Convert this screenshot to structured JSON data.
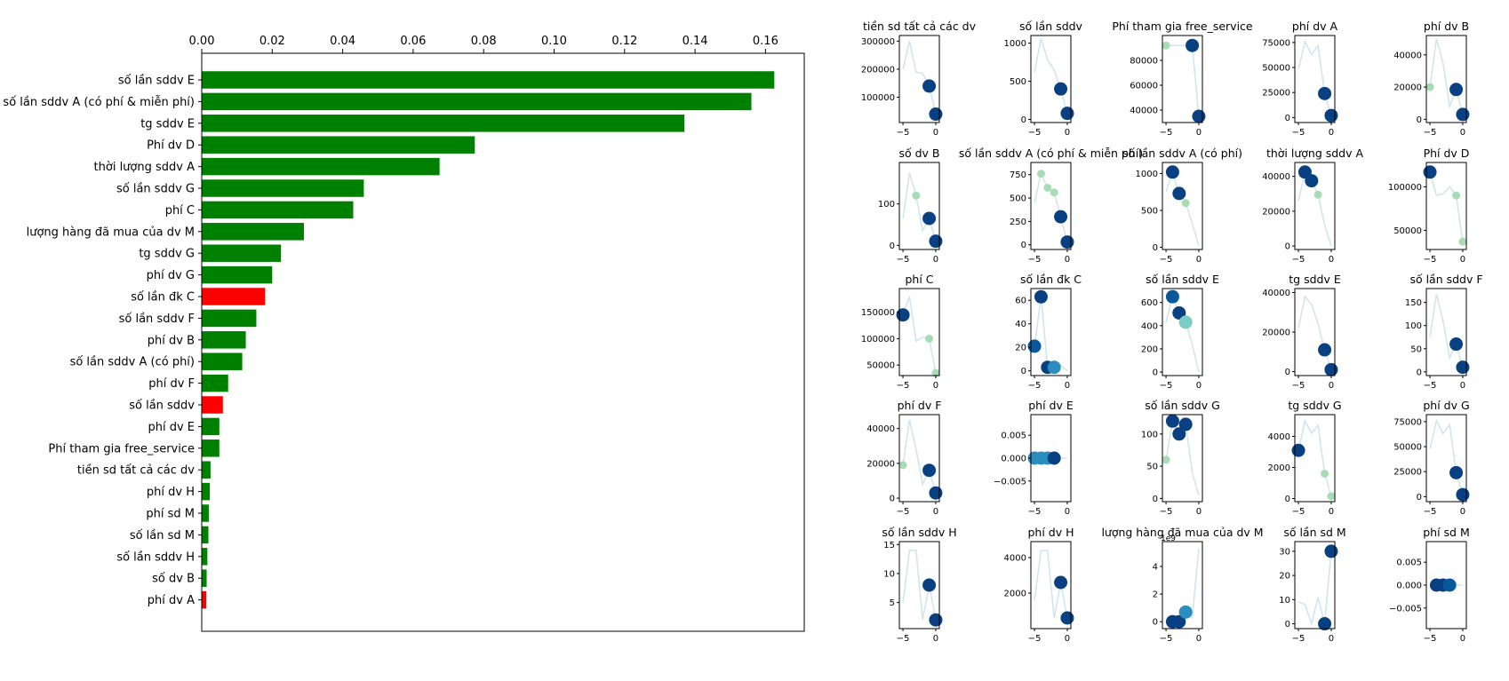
{
  "chart_data": [
    {
      "type": "bar",
      "orientation": "horizontal",
      "x_axis_position": "top",
      "xlim": [
        0,
        0.171
      ],
      "xticks": [
        "0.00",
        "0.02",
        "0.04",
        "0.06",
        "0.08",
        "0.10",
        "0.12",
        "0.14",
        "0.16"
      ],
      "colors": {
        "positive": "#008000",
        "negative": "#ff0000"
      },
      "categories": [
        "số lần sddv E",
        "số lần sddv A (có phí & miễn phí)",
        "tg sddv E",
        "Phí dv D",
        "thời lượng sddv A",
        "số lần sddv G",
        "phí C",
        "lượng hàng đã mua của dv M",
        "tg sddv G",
        "phí dv G",
        "số lần đk C",
        "số lần sddv F",
        "phí dv B",
        "số lần sddv A (có phí)",
        "phí dv F",
        "số lần sddv",
        "phí dv E",
        "Phí tham gia free_service",
        "tiền sd tất cả các dv",
        "phí dv H",
        "phí sd M",
        "số lần sd M",
        "số lần sddv H",
        "số dv B",
        "phí dv A"
      ],
      "values": [
        0.1625,
        0.156,
        0.137,
        0.0775,
        0.0675,
        0.046,
        0.043,
        0.029,
        0.0225,
        0.02,
        0.018,
        0.0155,
        0.0125,
        0.0115,
        0.0075,
        0.006,
        0.005,
        0.005,
        0.0025,
        0.0023,
        0.002,
        0.0019,
        0.0016,
        0.0014,
        0.0013
      ],
      "bar_colors": [
        "green",
        "green",
        "green",
        "green",
        "green",
        "green",
        "green",
        "green",
        "green",
        "green",
        "red",
        "green",
        "green",
        "green",
        "green",
        "red",
        "green",
        "green",
        "green",
        "green",
        "green",
        "green",
        "green",
        "green",
        "red"
      ]
    },
    {
      "type": "line",
      "layout": "small multiples, 5 columns × 5 rows",
      "x_values": [
        -5,
        -4,
        -3,
        -2,
        -1,
        0
      ],
      "xticks": [
        "−5",
        "0"
      ],
      "line_color": "#d1e5f0",
      "marker_colors": [
        "#a8dcb5",
        "#7bccc4",
        "#2b8cbe",
        "#08589e",
        "#084081"
      ],
      "panels": [
        {
          "title": "tiền sd tất cả các dv",
          "yticks": [
            "100000",
            "200000",
            "300000"
          ],
          "ylim": [
            10000,
            320000
          ],
          "y": [
            200000,
            300000,
            190000,
            185000,
            140000,
            40000
          ],
          "markers": [
            [
              -1,
              140000,
              4
            ],
            [
              0,
              40000,
              4
            ]
          ]
        },
        {
          "title": "số lần sddv",
          "yticks": [
            "0",
            "500",
            "1000"
          ],
          "ylim": [
            -40,
            1100
          ],
          "y": [
            620,
            1060,
            780,
            650,
            400,
            80
          ],
          "markers": [
            [
              -1,
              400,
              4
            ],
            [
              0,
              80,
              4
            ]
          ]
        },
        {
          "title": "Phí tham gia free_service",
          "yticks": [
            "40000",
            "60000",
            "80000"
          ],
          "ylim": [
            30000,
            100000
          ],
          "y": [
            92000,
            92000,
            92000,
            92000,
            92000,
            35000
          ],
          "markers": [
            [
              -5,
              92000,
              0
            ],
            [
              -1,
              92000,
              4
            ],
            [
              0,
              35000,
              4
            ]
          ]
        },
        {
          "title": "phí dv A",
          "yticks": [
            "0",
            "25000",
            "50000",
            "75000"
          ],
          "ylim": [
            -5000,
            82000
          ],
          "y": [
            48000,
            76000,
            63000,
            72000,
            24000,
            2000
          ],
          "markers": [
            [
              -1,
              24000,
              4
            ],
            [
              0,
              2000,
              4
            ]
          ]
        },
        {
          "title": "phí dv B",
          "yticks": [
            "0",
            "20000",
            "40000"
          ],
          "ylim": [
            -2000,
            52000
          ],
          "y": [
            20000,
            50000,
            35000,
            8000,
            18500,
            3000
          ],
          "markers": [
            [
              -5,
              20000,
              0
            ],
            [
              -1,
              18500,
              4
            ],
            [
              0,
              3000,
              4
            ]
          ]
        },
        {
          "title": "số dv B",
          "yticks": [
            "0",
            "100"
          ],
          "ylim": [
            -10,
            200
          ],
          "y": [
            65,
            175,
            120,
            35,
            65,
            10
          ],
          "markers": [
            [
              -3,
              120,
              0
            ],
            [
              -1,
              65,
              4
            ],
            [
              0,
              10,
              4
            ]
          ]
        },
        {
          "title": "số lần sddv A (có phí & miễn phí)",
          "yticks": [
            "0",
            "250",
            "500",
            "750"
          ],
          "ylim": [
            -50,
            880
          ],
          "y": [
            450,
            760,
            610,
            560,
            300,
            30
          ],
          "markers": [
            [
              -4,
              760,
              0
            ],
            [
              -3,
              610,
              0
            ],
            [
              -2,
              560,
              0
            ],
            [
              -1,
              300,
              4
            ],
            [
              0,
              30,
              4
            ]
          ]
        },
        {
          "title": "số lần sddv A (có phí)",
          "yticks": [
            "0",
            "500",
            "1000"
          ],
          "ylim": [
            -30,
            1150
          ],
          "y": [
            750,
            1020,
            730,
            600,
            320,
            20
          ],
          "markers": [
            [
              -4,
              1020,
              4
            ],
            [
              -3,
              730,
              4
            ],
            [
              -2,
              600,
              0
            ]
          ]
        },
        {
          "title": "thời lượng sddv A",
          "yticks": [
            "0",
            "20000",
            "40000"
          ],
          "ylim": [
            -2000,
            48000
          ],
          "y": [
            26000,
            42500,
            37500,
            29500,
            12000,
            0
          ],
          "markers": [
            [
              -4,
              42500,
              4
            ],
            [
              -3,
              37500,
              4
            ],
            [
              -2,
              29500,
              0
            ]
          ]
        },
        {
          "title": "Phí dv D",
          "yticks": [
            "50000",
            "100000"
          ],
          "ylim": [
            28000,
            128000
          ],
          "y": [
            117000,
            90000,
            92000,
            100000,
            90000,
            37000
          ],
          "markers": [
            [
              -5,
              117000,
              4
            ],
            [
              -1,
              90000,
              0
            ],
            [
              0,
              37000,
              0
            ]
          ]
        },
        {
          "title": "phí C",
          "yticks": [
            "50000",
            "100000",
            "150000"
          ],
          "ylim": [
            30000,
            195000
          ],
          "y": [
            145000,
            180000,
            95000,
            103000,
            100000,
            35000
          ],
          "markers": [
            [
              -5,
              145000,
              4
            ],
            [
              -1,
              100000,
              0
            ],
            [
              0,
              35000,
              0
            ]
          ]
        },
        {
          "title": "số lần đk C",
          "yticks": [
            "0",
            "20",
            "40",
            "60"
          ],
          "ylim": [
            -4,
            70
          ],
          "y": [
            21,
            63,
            3,
            3,
            5,
            0
          ],
          "markers": [
            [
              -5,
              21,
              3
            ],
            [
              -4,
              63,
              4
            ],
            [
              -3,
              3,
              4
            ],
            [
              -2,
              3,
              2
            ]
          ]
        },
        {
          "title": "số lần sddv E",
          "yticks": [
            "0",
            "200",
            "400",
            "600"
          ],
          "ylim": [
            -30,
            720
          ],
          "y": [
            430,
            650,
            510,
            430,
            240,
            0
          ],
          "markers": [
            [
              -4,
              650,
              3
            ],
            [
              -3,
              510,
              4
            ],
            [
              -2,
              430,
              1
            ]
          ]
        },
        {
          "title": "tg sddv E",
          "yticks": [
            "0",
            "20000",
            "40000"
          ],
          "ylim": [
            -2000,
            42000
          ],
          "y": [
            22000,
            38000,
            34000,
            24000,
            11000,
            1000
          ],
          "markers": [
            [
              -1,
              11000,
              4
            ],
            [
              0,
              1000,
              4
            ]
          ]
        },
        {
          "title": "số lần sddv F",
          "yticks": [
            "0",
            "50",
            "100",
            "150"
          ],
          "ylim": [
            -8,
            180
          ],
          "y": [
            75,
            168,
            110,
            30,
            60,
            10
          ],
          "markers": [
            [
              -1,
              60,
              4
            ],
            [
              0,
              10,
              4
            ]
          ]
        },
        {
          "title": "phí dv F",
          "yticks": [
            "0",
            "20000",
            "40000"
          ],
          "ylim": [
            -2000,
            48000
          ],
          "y": [
            19000,
            45000,
            28000,
            8000,
            16000,
            3000
          ],
          "markers": [
            [
              -5,
              19000,
              0
            ],
            [
              -1,
              16000,
              4
            ],
            [
              0,
              3000,
              4
            ]
          ]
        },
        {
          "title": "phí dv E",
          "yticks": [
            "−0.005",
            "0.000",
            "0.005"
          ],
          "ylim": [
            -0.0095,
            0.0095
          ],
          "y": [
            0,
            0,
            0,
            0,
            0,
            0
          ],
          "markers": [
            [
              -5,
              0,
              2
            ],
            [
              -4,
              0,
              2
            ],
            [
              -3,
              0,
              2
            ],
            [
              -2,
              0,
              4
            ]
          ]
        },
        {
          "title": "số lần sddv G",
          "yticks": [
            "0",
            "50",
            "100"
          ],
          "ylim": [
            -5,
            130
          ],
          "y": [
            60,
            120,
            100,
            115,
            40,
            5
          ],
          "markers": [
            [
              -5,
              60,
              0
            ],
            [
              -4,
              120,
              4
            ],
            [
              -3,
              100,
              4
            ],
            [
              -2,
              115,
              4
            ]
          ]
        },
        {
          "title": "tg sddv G",
          "yticks": [
            "0",
            "2000",
            "4000"
          ],
          "ylim": [
            -200,
            5400
          ],
          "y": [
            3100,
            5000,
            4200,
            4700,
            1600,
            150
          ],
          "markers": [
            [
              -5,
              3100,
              4
            ],
            [
              -1,
              1600,
              0
            ],
            [
              0,
              150,
              0
            ]
          ]
        },
        {
          "title": "phí dv G",
          "yticks": [
            "0",
            "25000",
            "50000",
            "75000"
          ],
          "ylim": [
            -5000,
            82000
          ],
          "y": [
            48000,
            76000,
            63000,
            72000,
            24000,
            2000
          ],
          "markers": [
            [
              -1,
              24000,
              4
            ],
            [
              0,
              2000,
              4
            ]
          ]
        },
        {
          "title": "số lần sddv H",
          "yticks": [
            "5",
            "10",
            "15"
          ],
          "ylim": [
            0.5,
            15.5
          ],
          "y": [
            5,
            14,
            14,
            2,
            8,
            2
          ],
          "markers": [
            [
              -1,
              8,
              4
            ],
            [
              0,
              2,
              4
            ]
          ]
        },
        {
          "title": "phí dv H",
          "yticks": [
            "2000",
            "4000"
          ],
          "ylim": [
            0,
            4900
          ],
          "y": [
            1600,
            4400,
            4400,
            600,
            2600,
            600
          ],
          "markers": [
            [
              -1,
              2600,
              4
            ],
            [
              0,
              600,
              4
            ]
          ]
        },
        {
          "title": "lượng hàng đã mua của dv M",
          "axis_offset": "1e9",
          "yticks": [
            "0",
            "2",
            "4"
          ],
          "ylim": [
            -0.5,
            5.8
          ],
          "y": [
            0,
            0,
            0,
            0.7,
            0.3,
            5.3
          ],
          "markers": [
            [
              -4,
              0,
              4
            ],
            [
              -3,
              0,
              4
            ],
            [
              -2,
              0.7,
              2
            ]
          ]
        },
        {
          "title": "số lần sd M",
          "yticks": [
            "0",
            "10",
            "20",
            "30"
          ],
          "ylim": [
            -2,
            34
          ],
          "y": [
            9,
            8,
            0,
            11,
            0,
            30
          ],
          "markers": [
            [
              -1,
              0,
              4
            ],
            [
              0,
              30,
              4
            ]
          ]
        },
        {
          "title": "phí sd M",
          "yticks": [
            "−0.005",
            "0.000",
            "0.005"
          ],
          "ylim": [
            -0.0095,
            0.0095
          ],
          "y": [
            0,
            0,
            0,
            0,
            0,
            0
          ],
          "markers": [
            [
              -4,
              0,
              4
            ],
            [
              -3,
              0,
              4
            ],
            [
              -2,
              0,
              3
            ]
          ]
        }
      ]
    }
  ]
}
